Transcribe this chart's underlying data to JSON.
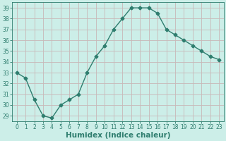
{
  "x": [
    0,
    1,
    2,
    3,
    4,
    5,
    6,
    7,
    8,
    9,
    10,
    11,
    12,
    13,
    14,
    15,
    16,
    17,
    18,
    19,
    20,
    21,
    22,
    23
  ],
  "y": [
    33,
    32.5,
    30.5,
    29,
    28.8,
    30,
    30.5,
    31,
    33,
    34.5,
    35.5,
    37,
    38,
    39,
    39,
    39,
    38.5,
    37,
    36.5,
    36,
    35.5,
    35,
    34.5,
    34.2
  ],
  "line_color": "#2e7d6e",
  "marker": "D",
  "marker_size": 2.5,
  "line_width": 1.0,
  "bg_color": "#cceee8",
  "grid_color": "#c8b8b8",
  "xlabel": "Humidex (Indice chaleur)",
  "xlabel_color": "#2e7d6e",
  "ylabel": "",
  "xlim": [
    -0.5,
    23.5
  ],
  "ylim": [
    28.5,
    39.5
  ],
  "yticks": [
    29,
    30,
    31,
    32,
    33,
    34,
    35,
    36,
    37,
    38,
    39
  ],
  "xticks": [
    0,
    1,
    2,
    3,
    4,
    5,
    6,
    7,
    8,
    9,
    10,
    11,
    12,
    13,
    14,
    15,
    16,
    17,
    18,
    19,
    20,
    21,
    22,
    23
  ],
  "tick_color": "#2e7d6e",
  "tick_label_fontsize": 5.5,
  "xlabel_fontsize": 7.5
}
